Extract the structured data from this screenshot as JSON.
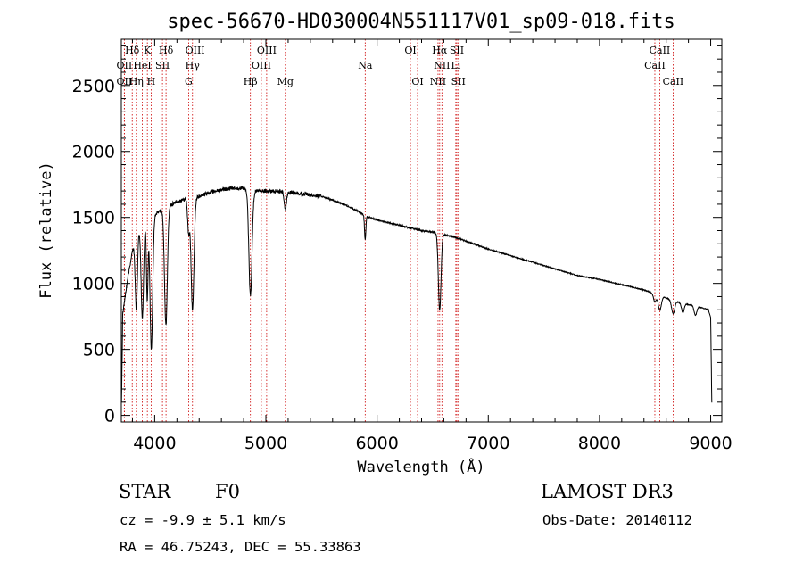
{
  "chart_data": {
    "type": "line",
    "title": "spec-56670-HD030004N551117V01_sp09-018.fits",
    "xlabel": "Wavelength (Å)",
    "ylabel": "Flux (relative)",
    "xlim": [
      3700,
      9100
    ],
    "ylim": [
      -50,
      2850
    ],
    "xticks": [
      4000,
      5000,
      6000,
      7000,
      8000,
      9000
    ],
    "yticks": [
      0,
      500,
      1000,
      1500,
      2000,
      2500
    ],
    "continuum": [
      [
        3700,
        700
      ],
      [
        3760,
        1050
      ],
      [
        3800,
        1250
      ],
      [
        3850,
        1400
      ],
      [
        3900,
        1450
      ],
      [
        4000,
        1520
      ],
      [
        4100,
        1580
      ],
      [
        4200,
        1620
      ],
      [
        4300,
        1640
      ],
      [
        4400,
        1660
      ],
      [
        4500,
        1690
      ],
      [
        4600,
        1710
      ],
      [
        4700,
        1720
      ],
      [
        4800,
        1720
      ],
      [
        4900,
        1700
      ],
      [
        5000,
        1700
      ],
      [
        5100,
        1700
      ],
      [
        5200,
        1690
      ],
      [
        5300,
        1680
      ],
      [
        5400,
        1670
      ],
      [
        5500,
        1660
      ],
      [
        5600,
        1630
      ],
      [
        5700,
        1600
      ],
      [
        5800,
        1560
      ],
      [
        5900,
        1510
      ],
      [
        6000,
        1480
      ],
      [
        6100,
        1460
      ],
      [
        6200,
        1440
      ],
      [
        6300,
        1420
      ],
      [
        6400,
        1400
      ],
      [
        6500,
        1390
      ],
      [
        6600,
        1370
      ],
      [
        6700,
        1350
      ],
      [
        6800,
        1320
      ],
      [
        6900,
        1290
      ],
      [
        7000,
        1260
      ],
      [
        7200,
        1210
      ],
      [
        7400,
        1160
      ],
      [
        7600,
        1110
      ],
      [
        7800,
        1060
      ],
      [
        8000,
        1030
      ],
      [
        8200,
        990
      ],
      [
        8400,
        950
      ],
      [
        8500,
        920
      ],
      [
        8600,
        890
      ],
      [
        8700,
        860
      ],
      [
        8800,
        840
      ],
      [
        8900,
        820
      ],
      [
        8980,
        800
      ],
      [
        9000,
        740
      ],
      [
        9010,
        100
      ]
    ],
    "absorption_lines": [
      {
        "wavelength": 3835,
        "depth": 550,
        "width": 10
      },
      {
        "wavelength": 3889,
        "depth": 700,
        "width": 11
      },
      {
        "wavelength": 3933,
        "depth": 600,
        "width": 7
      },
      {
        "wavelength": 3970,
        "depth": 1000,
        "width": 12
      },
      {
        "wavelength": 4101,
        "depth": 900,
        "width": 13
      },
      {
        "wavelength": 4305,
        "depth": 250,
        "width": 9
      },
      {
        "wavelength": 4340,
        "depth": 850,
        "width": 13
      },
      {
        "wavelength": 4861,
        "depth": 800,
        "width": 14
      },
      {
        "wavelength": 5175,
        "depth": 130,
        "width": 10
      },
      {
        "wavelength": 5893,
        "depth": 180,
        "width": 6
      },
      {
        "wavelength": 6563,
        "depth": 580,
        "width": 12
      },
      {
        "wavelength": 8498,
        "depth": 60,
        "width": 12
      },
      {
        "wavelength": 8542,
        "depth": 110,
        "width": 14
      },
      {
        "wavelength": 8662,
        "depth": 100,
        "width": 14
      },
      {
        "wavelength": 8750,
        "depth": 70,
        "width": 12
      },
      {
        "wavelength": 8863,
        "depth": 70,
        "width": 12
      }
    ],
    "spectral_lines": [
      {
        "label": "Hδ",
        "wavelength": 3798,
        "row": 0
      },
      {
        "label": "K",
        "wavelength": 3934,
        "row": 0
      },
      {
        "label": "Hδ",
        "wavelength": 4102,
        "row": 0
      },
      {
        "label": "OIII",
        "wavelength": 4363,
        "row": 0
      },
      {
        "label": "OIII",
        "wavelength": 5007,
        "row": 0
      },
      {
        "label": "OI",
        "wavelength": 6300,
        "row": 0
      },
      {
        "label": "Hα",
        "wavelength": 6563,
        "row": 0
      },
      {
        "label": "SII",
        "wavelength": 6717,
        "row": 0
      },
      {
        "label": "CaII",
        "wavelength": 8542,
        "row": 0
      },
      {
        "label": "OII",
        "wavelength": 3727,
        "row": 1
      },
      {
        "label": "HeI",
        "wavelength": 3889,
        "row": 1
      },
      {
        "label": "SII",
        "wavelength": 4070,
        "row": 1
      },
      {
        "label": "Hγ",
        "wavelength": 4340,
        "row": 1
      },
      {
        "label": "OIII",
        "wavelength": 4959,
        "row": 1
      },
      {
        "label": "Na",
        "wavelength": 5893,
        "row": 1
      },
      {
        "label": "NII",
        "wavelength": 6583,
        "row": 1
      },
      {
        "label": "Li",
        "wavelength": 6708,
        "row": 1
      },
      {
        "label": "CaII",
        "wavelength": 8498,
        "row": 1
      },
      {
        "label": "OII",
        "wavelength": 3727,
        "row": 2
      },
      {
        "label": "Hη",
        "wavelength": 3835,
        "row": 2
      },
      {
        "label": "H",
        "wavelength": 3968,
        "row": 2
      },
      {
        "label": "G",
        "wavelength": 4305,
        "row": 2
      },
      {
        "label": "Hβ",
        "wavelength": 4861,
        "row": 2
      },
      {
        "label": "Mg",
        "wavelength": 5175,
        "row": 2
      },
      {
        "label": "OI",
        "wavelength": 6364,
        "row": 2
      },
      {
        "label": "NII",
        "wavelength": 6548,
        "row": 2
      },
      {
        "label": "SII",
        "wavelength": 6731,
        "row": 2
      },
      {
        "label": "CaII",
        "wavelength": 8662,
        "row": 2
      }
    ],
    "grid": false,
    "line_color": "#000000",
    "marker_color": "#cc0000"
  },
  "info": {
    "class": "STAR",
    "subclass": "F0",
    "survey": "LAMOST DR3",
    "cz": "cz = -9.9 ± 5.1 km/s",
    "obs_date": "Obs-Date: 20140112",
    "coords": "RA =  46.75243, DEC =  55.33863"
  }
}
